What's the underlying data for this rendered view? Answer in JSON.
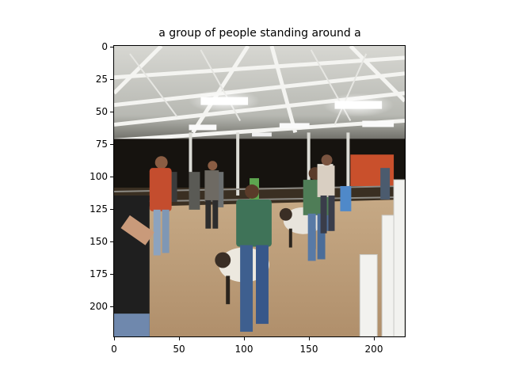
{
  "figure": {
    "title": "a group of people standing around a",
    "image_subject": "people with sheep in a livestock show barn"
  },
  "axes": {
    "y_ticks": [
      "0",
      "25",
      "50",
      "75",
      "100",
      "125",
      "150",
      "175",
      "200"
    ],
    "x_ticks": [
      "0",
      "50",
      "100",
      "150",
      "200"
    ]
  }
}
